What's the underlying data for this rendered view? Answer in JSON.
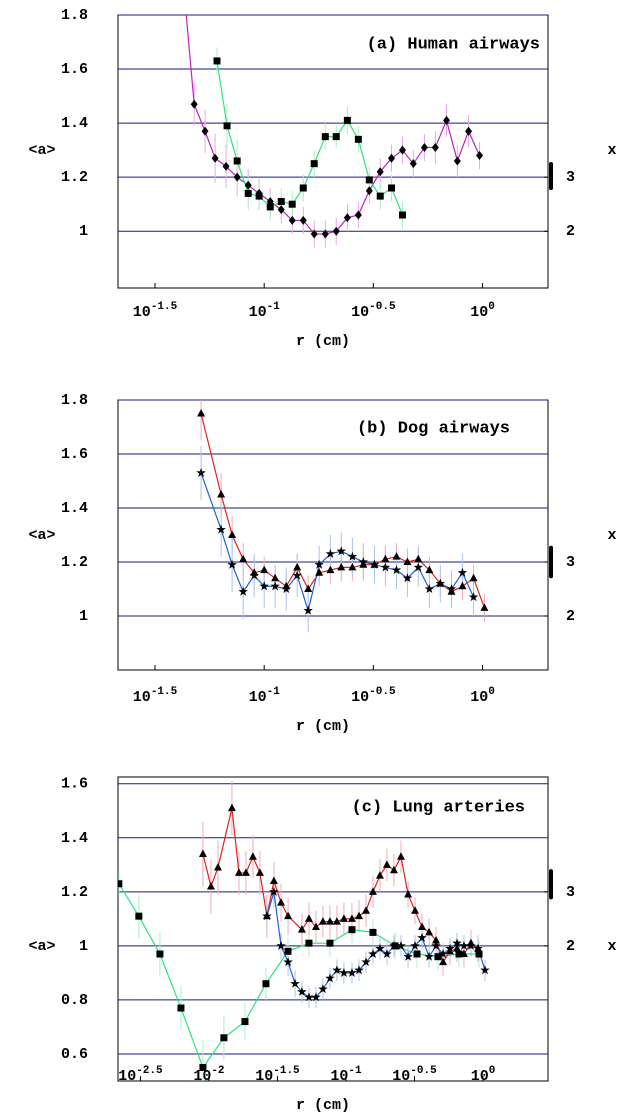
{
  "chart_data": [
    {
      "type": "line",
      "title": "(a) Human airways",
      "xlabel": "r (cm)",
      "ylabel": "<a>",
      "y2label": "x",
      "xscale": "log",
      "xlim": [
        0.0214,
        1.995
      ],
      "xticks": [
        {
          "value": 0.03162,
          "label": "10^-1.5"
        },
        {
          "value": 0.1,
          "label": "10^-1"
        },
        {
          "value": 0.3162,
          "label": "10^-0.5"
        },
        {
          "value": 1,
          "label": "10^0"
        }
      ],
      "ylim": [
        0.79,
        1.8
      ],
      "yticks": [
        1,
        1.2,
        1.4,
        1.6,
        1.8
      ],
      "y2lim": [
        0.95,
        6
      ],
      "y2ticks": [
        2,
        3
      ],
      "y2_band": [
        2.76,
        3.28
      ],
      "grid": true,
      "series": [
        {
          "color": "#c020c0",
          "error_color": "#e8a8e8",
          "marker": "diamond",
          "x": [
            0.0425,
            0.0478,
            0.0536,
            0.0596,
            0.0669,
            0.0752,
            0.0845,
            0.0948,
            0.1066,
            0.1197,
            0.1344,
            0.151,
            0.1695,
            0.1905,
            0.2138,
            0.2404,
            0.27,
            0.303,
            0.34,
            0.383,
            0.43,
            0.482,
            0.542,
            0.608,
            0.684,
            0.767,
            0.863,
            0.969
          ],
          "values": [
            1.93,
            1.47,
            1.37,
            1.27,
            1.24,
            1.2,
            1.17,
            1.14,
            1.11,
            1.08,
            1.04,
            1.04,
            0.99,
            0.99,
            1.0,
            1.05,
            1.06,
            1.15,
            1.22,
            1.27,
            1.3,
            1.25,
            1.31,
            1.31,
            1.41,
            1.26,
            1.37,
            1.28
          ],
          "errors": [
            0.1,
            0.08,
            0.08,
            0.09,
            0.08,
            0.07,
            0.06,
            0.06,
            0.05,
            0.05,
            0.05,
            0.05,
            0.05,
            0.05,
            0.05,
            0.05,
            0.05,
            0.05,
            0.05,
            0.05,
            0.05,
            0.05,
            0.05,
            0.06,
            0.06,
            0.06,
            0.06,
            0.05
          ]
        },
        {
          "color": "#30e080",
          "error_color": "#a8f0c8",
          "marker": "square",
          "x": [
            0.0608,
            0.0676,
            0.0752,
            0.0845,
            0.0948,
            0.1066,
            0.1197,
            0.1344,
            0.151,
            0.1695,
            0.1905,
            0.2138,
            0.2404,
            0.27,
            0.303,
            0.34,
            0.383,
            0.43
          ],
          "values": [
            1.63,
            1.39,
            1.26,
            1.14,
            1.13,
            1.09,
            1.11,
            1.1,
            1.16,
            1.25,
            1.35,
            1.35,
            1.41,
            1.34,
            1.19,
            1.13,
            1.16,
            1.06
          ],
          "errors": [
            0.05,
            0.08,
            0.08,
            0.06,
            0.05,
            0.05,
            0.05,
            0.05,
            0.05,
            0.05,
            0.05,
            0.04,
            0.05,
            0.05,
            0.05,
            0.05,
            0.05,
            0.05
          ]
        }
      ]
    },
    {
      "type": "line",
      "title": "(b) Dog airways",
      "xlabel": "r (cm)",
      "ylabel": "<a>",
      "y2label": "x",
      "xscale": "log",
      "xlim": [
        0.0214,
        1.995
      ],
      "xticks": [
        {
          "value": 0.03162,
          "label": "10^-1.5"
        },
        {
          "value": 0.1,
          "label": "10^-1"
        },
        {
          "value": 0.3162,
          "label": "10^-0.5"
        },
        {
          "value": 1,
          "label": "10^0"
        }
      ],
      "ylim": [
        0.8,
        1.8
      ],
      "yticks": [
        1,
        1.2,
        1.4,
        1.6,
        1.8
      ],
      "y2lim": [
        1,
        6
      ],
      "y2ticks": [
        2,
        3
      ],
      "y2_band": [
        2.7,
        3.3
      ],
      "grid": true,
      "series": [
        {
          "color": "#e02020",
          "error_color": "#f4a8b8",
          "marker": "triangle",
          "x": [
            0.0514,
            0.0635,
            0.0713,
            0.0801,
            0.09,
            0.1,
            0.1122,
            0.1262,
            0.1416,
            0.159,
            0.1786,
            0.201,
            0.2254,
            0.2535,
            0.2845,
            0.32,
            0.359,
            0.4036,
            0.453,
            0.508,
            0.571,
            0.641,
            0.721,
            0.809,
            0.91,
            1.02
          ],
          "values": [
            1.75,
            1.45,
            1.3,
            1.21,
            1.16,
            1.17,
            1.14,
            1.11,
            1.18,
            1.1,
            1.16,
            1.17,
            1.18,
            1.18,
            1.19,
            1.19,
            1.21,
            1.22,
            1.2,
            1.21,
            1.17,
            1.12,
            1.09,
            1.11,
            1.14,
            1.03
          ],
          "errors": [
            0.1,
            0.08,
            0.07,
            0.06,
            0.06,
            0.05,
            0.05,
            0.05,
            0.05,
            0.05,
            0.05,
            0.05,
            0.05,
            0.05,
            0.05,
            0.05,
            0.05,
            0.05,
            0.05,
            0.05,
            0.05,
            0.05,
            0.05,
            0.05,
            0.05,
            0.05
          ]
        },
        {
          "color": "#2060d0",
          "error_color": "#a8c4f0",
          "marker": "star",
          "x": [
            0.0514,
            0.0635,
            0.0713,
            0.0801,
            0.09,
            0.1,
            0.1122,
            0.1262,
            0.1416,
            0.159,
            0.1786,
            0.201,
            0.2254,
            0.2535,
            0.2845,
            0.32,
            0.359,
            0.4036,
            0.453,
            0.508,
            0.571,
            0.641,
            0.721,
            0.809,
            0.91
          ],
          "values": [
            1.53,
            1.32,
            1.19,
            1.09,
            1.15,
            1.11,
            1.11,
            1.1,
            1.15,
            1.02,
            1.19,
            1.23,
            1.24,
            1.22,
            1.2,
            1.19,
            1.18,
            1.17,
            1.14,
            1.18,
            1.1,
            1.12,
            1.1,
            1.16,
            1.07
          ],
          "errors": [
            0.1,
            0.1,
            0.1,
            0.1,
            0.08,
            0.08,
            0.08,
            0.08,
            0.08,
            0.08,
            0.07,
            0.07,
            0.07,
            0.07,
            0.07,
            0.07,
            0.07,
            0.07,
            0.07,
            0.07,
            0.07,
            0.07,
            0.07,
            0.07,
            0.07
          ]
        }
      ]
    },
    {
      "type": "line",
      "title": "(c) Lung arteries",
      "xlabel": "r (cm)",
      "ylabel": "<a>",
      "y2label": "x",
      "xscale": "log",
      "xlim": [
        0.00217,
        2.98
      ],
      "xticks": [
        {
          "value": 0.003162,
          "label": "10^-2.5"
        },
        {
          "value": 0.01,
          "label": "10^-2"
        },
        {
          "value": 0.03162,
          "label": "10^-1.5"
        },
        {
          "value": 0.1,
          "label": "10^-1"
        },
        {
          "value": 0.3162,
          "label": "10^-0.5"
        },
        {
          "value": 1,
          "label": "10^0"
        }
      ],
      "ylim": [
        0.5,
        1.625
      ],
      "yticks": [
        0.6,
        0.8,
        1,
        1.2,
        1.4,
        1.6
      ],
      "y2lim": [
        -0.5,
        5.125
      ],
      "y2ticks": [
        2,
        3
      ],
      "y2_band": [
        2.86,
        3.42
      ],
      "grid": true,
      "series": [
        {
          "color": "#30e080",
          "error_color": "#a8f0c8",
          "marker": "square",
          "x": [
            0.0022,
            0.00308,
            0.00439,
            0.00625,
            0.00904,
            0.01286,
            0.01832,
            0.02606,
            0.03776,
            0.0537,
            0.0764,
            0.1106,
            0.1574,
            0.228,
            0.33,
            0.469,
            0.668,
            0.935
          ],
          "values": [
            1.23,
            1.11,
            0.97,
            0.77,
            0.55,
            0.66,
            0.72,
            0.86,
            0.98,
            1.01,
            1.01,
            1.06,
            1.05,
            1.0,
            0.97,
            0.96,
            0.97,
            0.97
          ],
          "errors": [
            0.05,
            0.08,
            0.08,
            0.08,
            0.1,
            0.08,
            0.07,
            0.06,
            0.05,
            0.05,
            0.05,
            0.05,
            0.05,
            0.05,
            0.05,
            0.05,
            0.05,
            0.05
          ]
        },
        {
          "color": "#e02020",
          "error_color": "#f4a8b8",
          "marker": "triangle",
          "x": [
            0.00904,
            0.01035,
            0.01164,
            0.01472,
            0.01656,
            0.01862,
            0.02094,
            0.02355,
            0.02649,
            0.0298,
            0.0336,
            0.0378,
            0.0477,
            0.0537,
            0.0604,
            0.0679,
            0.0764,
            0.0859,
            0.0966,
            0.1106,
            0.1245,
            0.14,
            0.1574,
            0.177,
            0.199,
            0.224,
            0.252,
            0.284,
            0.319,
            0.359,
            0.404,
            0.454,
            0.511,
            0.574,
            0.646,
            0.726,
            0.817,
            0.92
          ],
          "values": [
            1.34,
            1.22,
            1.29,
            1.51,
            1.27,
            1.27,
            1.33,
            1.27,
            1.11,
            1.24,
            1.16,
            1.11,
            1.06,
            1.1,
            1.07,
            1.09,
            1.09,
            1.09,
            1.1,
            1.1,
            1.11,
            1.13,
            1.2,
            1.26,
            1.3,
            1.28,
            1.33,
            1.19,
            1.13,
            1.07,
            1.05,
            1.02,
            0.94,
            0.98,
            0.99,
            0.97,
            1.01,
            0.99
          ],
          "errors": [
            0.12,
            0.1,
            0.1,
            0.1,
            0.08,
            0.08,
            0.08,
            0.08,
            0.08,
            0.07,
            0.07,
            0.07,
            0.06,
            0.06,
            0.06,
            0.06,
            0.06,
            0.06,
            0.06,
            0.06,
            0.06,
            0.06,
            0.06,
            0.06,
            0.06,
            0.06,
            0.06,
            0.05,
            0.05,
            0.05,
            0.05,
            0.05,
            0.05,
            0.05,
            0.05,
            0.05,
            0.05,
            0.05
          ]
        },
        {
          "color": "#2060d0",
          "error_color": "#a8c4f0",
          "marker": "star",
          "x": [
            0.02649,
            0.0298,
            0.0336,
            0.0378,
            0.0425,
            0.0477,
            0.0537,
            0.0604,
            0.0679,
            0.0764,
            0.0859,
            0.0966,
            0.1106,
            0.1245,
            0.14,
            0.1574,
            0.177,
            0.199,
            0.224,
            0.252,
            0.284,
            0.319,
            0.359,
            0.404,
            0.454,
            0.511,
            0.574,
            0.646,
            0.726,
            0.817,
            0.92,
            1.034
          ],
          "values": [
            1.11,
            1.2,
            1.0,
            0.94,
            0.86,
            0.83,
            0.81,
            0.81,
            0.84,
            0.88,
            0.91,
            0.9,
            0.9,
            0.91,
            0.94,
            0.97,
            0.99,
            0.97,
            1.0,
            1.0,
            0.96,
            1.0,
            1.03,
            0.96,
            1.0,
            0.97,
            0.99,
            1.01,
            1.0,
            1.0,
            0.99,
            0.91
          ],
          "errors": [
            0.05,
            0.06,
            0.05,
            0.05,
            0.05,
            0.04,
            0.04,
            0.04,
            0.04,
            0.04,
            0.04,
            0.04,
            0.04,
            0.04,
            0.04,
            0.04,
            0.04,
            0.04,
            0.04,
            0.04,
            0.04,
            0.04,
            0.04,
            0.04,
            0.04,
            0.04,
            0.04,
            0.04,
            0.04,
            0.04,
            0.04,
            0.04
          ]
        }
      ]
    }
  ]
}
